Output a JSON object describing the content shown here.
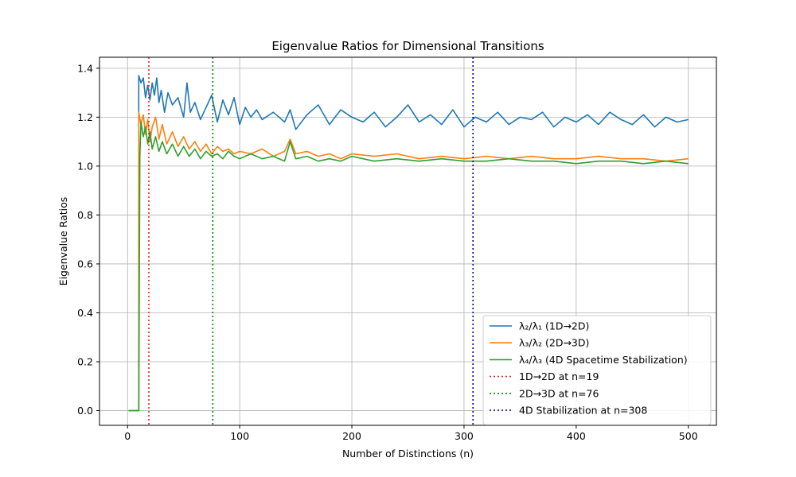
{
  "chart_data": {
    "type": "line",
    "title": "Eigenvalue Ratios for Dimensional Transitions",
    "xlabel": "Number of Distinctions (n)",
    "ylabel": "Eigenvalue Ratios",
    "xlim": [
      -25,
      525
    ],
    "ylim": [
      -0.06,
      1.445
    ],
    "xticks": [
      0,
      100,
      200,
      300,
      400,
      500
    ],
    "yticks": [
      0.0,
      0.2,
      0.4,
      0.6,
      0.8,
      1.0,
      1.2,
      1.4
    ],
    "ytick_labels": [
      "0.0",
      "0.2",
      "0.4",
      "0.6",
      "0.8",
      "1.0",
      "1.2",
      "1.4"
    ],
    "grid": true,
    "legend_position": "lower right",
    "series": [
      {
        "name": "λ₂/λ₁ (1D→2D)",
        "color": "#1f77b4",
        "x": [
          1,
          10,
          10,
          12,
          14,
          16,
          18,
          20,
          22,
          24,
          26,
          28,
          30,
          33,
          36,
          40,
          45,
          50,
          53,
          56,
          60,
          65,
          70,
          75,
          80,
          85,
          90,
          95,
          100,
          105,
          110,
          115,
          120,
          130,
          140,
          145,
          150,
          160,
          170,
          180,
          190,
          200,
          210,
          220,
          230,
          240,
          250,
          260,
          270,
          280,
          290,
          300,
          310,
          320,
          330,
          340,
          350,
          360,
          370,
          380,
          390,
          400,
          410,
          420,
          430,
          440,
          450,
          460,
          470,
          480,
          490,
          500
        ],
        "y": [
          0.0,
          0.0,
          1.37,
          1.34,
          1.36,
          1.28,
          1.33,
          1.27,
          1.34,
          1.29,
          1.36,
          1.26,
          1.31,
          1.22,
          1.3,
          1.25,
          1.28,
          1.2,
          1.34,
          1.22,
          1.26,
          1.19,
          1.24,
          1.29,
          1.18,
          1.27,
          1.21,
          1.28,
          1.17,
          1.24,
          1.2,
          1.23,
          1.19,
          1.22,
          1.18,
          1.23,
          1.15,
          1.21,
          1.25,
          1.17,
          1.23,
          1.2,
          1.18,
          1.22,
          1.16,
          1.2,
          1.25,
          1.18,
          1.21,
          1.17,
          1.23,
          1.16,
          1.2,
          1.18,
          1.22,
          1.17,
          1.2,
          1.19,
          1.22,
          1.16,
          1.2,
          1.18,
          1.21,
          1.17,
          1.22,
          1.19,
          1.17,
          1.21,
          1.16,
          1.2,
          1.18,
          1.19
        ]
      },
      {
        "name": "λ₃/λ₂ (2D→3D)",
        "color": "#ff7f0e",
        "x": [
          1,
          10,
          10,
          12,
          14,
          16,
          18,
          20,
          22,
          25,
          28,
          31,
          35,
          40,
          45,
          50,
          55,
          60,
          65,
          70,
          75,
          80,
          85,
          90,
          95,
          100,
          110,
          120,
          130,
          140,
          145,
          150,
          160,
          170,
          180,
          190,
          200,
          220,
          240,
          260,
          280,
          300,
          320,
          340,
          360,
          380,
          400,
          420,
          440,
          460,
          480,
          500
        ],
        "y": [
          0.0,
          0.0,
          1.22,
          1.17,
          1.21,
          1.13,
          1.19,
          1.1,
          1.16,
          1.2,
          1.11,
          1.17,
          1.09,
          1.14,
          1.08,
          1.12,
          1.07,
          1.1,
          1.06,
          1.09,
          1.05,
          1.08,
          1.06,
          1.07,
          1.05,
          1.06,
          1.05,
          1.07,
          1.04,
          1.06,
          1.11,
          1.05,
          1.06,
          1.04,
          1.05,
          1.03,
          1.05,
          1.04,
          1.05,
          1.03,
          1.04,
          1.03,
          1.04,
          1.03,
          1.04,
          1.03,
          1.03,
          1.04,
          1.03,
          1.03,
          1.02,
          1.03
        ]
      },
      {
        "name": "λ₄/λ₃ (4D Spacetime Stabilization)",
        "color": "#2ca02c",
        "x": [
          1,
          10,
          11,
          12,
          14,
          16,
          18,
          20,
          22,
          25,
          28,
          31,
          35,
          40,
          45,
          50,
          55,
          60,
          65,
          70,
          75,
          80,
          85,
          90,
          95,
          100,
          110,
          120,
          130,
          140,
          145,
          150,
          160,
          170,
          180,
          190,
          200,
          220,
          240,
          260,
          280,
          300,
          320,
          340,
          360,
          380,
          400,
          420,
          440,
          460,
          480,
          500
        ],
        "y": [
          0.0,
          0.0,
          1.04,
          1.18,
          1.12,
          1.16,
          1.09,
          1.14,
          1.07,
          1.12,
          1.06,
          1.1,
          1.05,
          1.09,
          1.04,
          1.08,
          1.04,
          1.07,
          1.03,
          1.06,
          1.04,
          1.05,
          1.03,
          1.06,
          1.04,
          1.03,
          1.05,
          1.03,
          1.04,
          1.02,
          1.1,
          1.03,
          1.04,
          1.02,
          1.03,
          1.02,
          1.04,
          1.02,
          1.03,
          1.02,
          1.03,
          1.02,
          1.02,
          1.03,
          1.02,
          1.02,
          1.01,
          1.02,
          1.02,
          1.01,
          1.02,
          1.01
        ]
      }
    ],
    "vlines": [
      {
        "name": "1D→2D at n=19",
        "x": 19,
        "color": "#d62728"
      },
      {
        "name": "2D→3D at n=76",
        "x": 76,
        "color": "#008000"
      },
      {
        "name": "4D Stabilization at n=308",
        "x": 308,
        "color": "#00008b"
      }
    ]
  }
}
